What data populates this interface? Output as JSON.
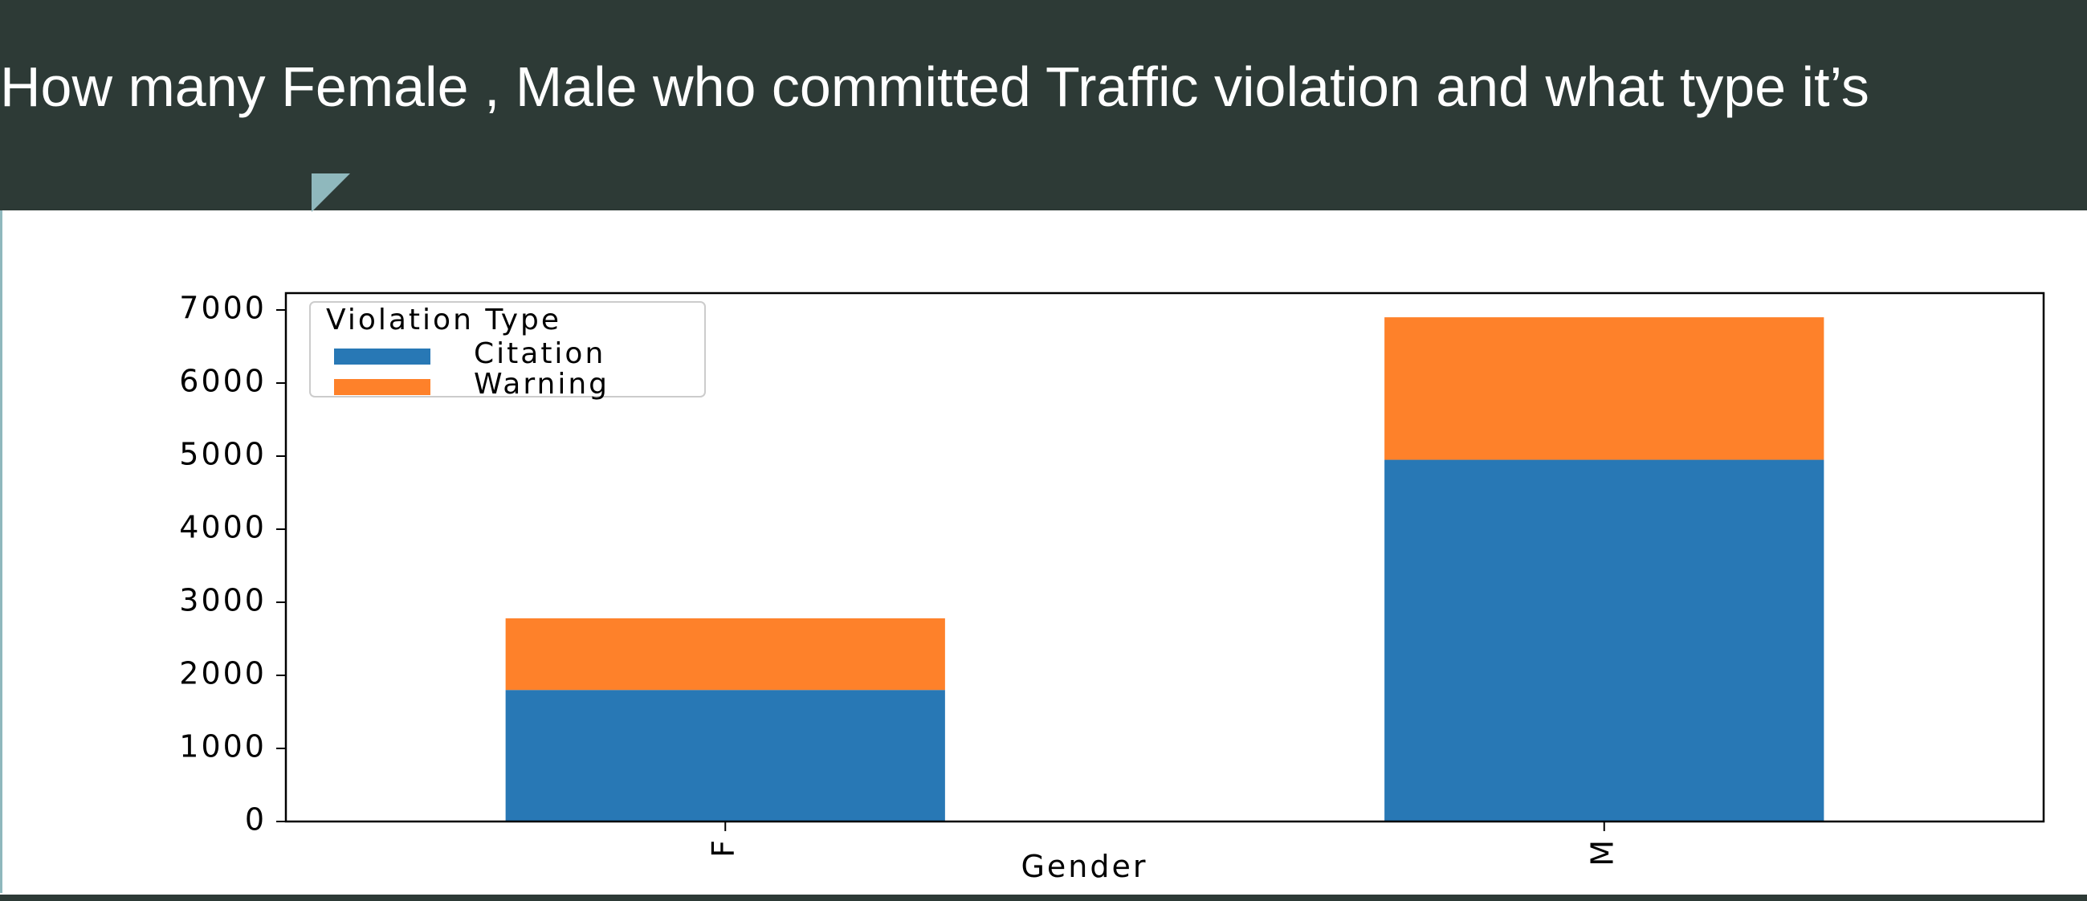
{
  "slide": {
    "title": "How many Female , Male who committed Traffic violation and what type it’s"
  },
  "colors": {
    "header_bg": "#2d3a36",
    "accent": "#8fb8bd",
    "citation": "#2878b5",
    "warning": "#fe812a"
  },
  "chart_data": {
    "type": "bar",
    "stacked": true,
    "categories": [
      "F",
      "M"
    ],
    "series": [
      {
        "name": "Citation",
        "values": [
          1800,
          4950
        ]
      },
      {
        "name": "Warning",
        "values": [
          980,
          1950
        ]
      }
    ],
    "title": "",
    "xlabel": "Gender",
    "ylabel": "",
    "ylim": [
      0,
      7000
    ],
    "yticks": [
      0,
      1000,
      2000,
      3000,
      4000,
      5000,
      6000,
      7000
    ],
    "legend": {
      "title": "Violation Type",
      "placement": "top-left"
    },
    "grid": false
  }
}
